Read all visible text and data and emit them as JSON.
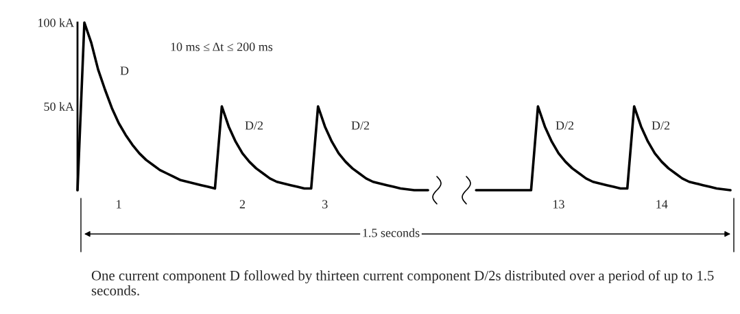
{
  "chart_data": {
    "type": "line",
    "categories": [
      null,
      null,
      null,
      null,
      null,
      null,
      "1",
      null,
      null,
      null,
      null,
      null,
      null,
      null,
      null,
      null,
      null,
      null,
      null,
      null,
      null,
      null,
      null,
      null,
      "2",
      null,
      null,
      null,
      null,
      null,
      null,
      null,
      null,
      null,
      null,
      null,
      "3",
      null,
      null,
      null,
      null,
      null,
      null,
      null,
      null,
      null,
      null,
      null,
      null,
      null,
      null,
      null,
      null,
      null,
      null,
      null,
      null,
      null,
      null,
      null,
      null,
      null,
      null,
      null,
      null,
      null,
      null,
      null,
      null,
      null,
      "13",
      null,
      null,
      null,
      null,
      null,
      null,
      null,
      null,
      null,
      null,
      null,
      null,
      null,
      null,
      "14",
      null,
      null,
      null,
      null,
      null,
      null,
      null,
      null,
      null,
      null
    ],
    "series": [
      {
        "color": "#000000",
        "values": [
          0,
          100,
          88,
          72,
          60,
          49,
          40,
          33,
          27,
          22,
          18,
          15,
          12,
          10,
          8,
          6,
          5,
          4,
          3,
          2,
          1,
          50,
          38,
          29,
          22,
          17,
          13,
          10,
          7,
          5,
          4,
          3,
          2,
          1,
          1,
          50,
          38,
          29,
          22,
          17,
          13,
          10,
          7,
          5,
          4,
          3,
          2,
          1,
          0.5,
          0,
          0,
          0,
          null,
          null,
          null,
          null,
          null,
          null,
          0,
          0,
          0,
          0,
          0,
          0,
          0,
          0,
          0,
          50,
          38,
          29,
          22,
          17,
          13,
          10,
          7,
          5,
          4,
          3,
          2,
          1,
          1,
          50,
          38,
          29,
          22,
          17,
          13,
          10,
          7,
          5,
          4,
          3,
          2,
          1,
          0.5,
          0
        ]
      }
    ],
    "ylim": [
      0,
      100
    ],
    "yticks": [
      {
        "value": 50,
        "label": "50 kA"
      },
      {
        "value": 100,
        "label": "100 kA"
      }
    ],
    "grid": false,
    "legend": false,
    "marker": "none",
    "line_style": "solid",
    "annotations": [
      "10 ms ≤ Δt ≤ 200 ms",
      "D",
      "D/2",
      "D/2",
      "D/2",
      "D/2",
      "1.5 seconds",
      "One current component D followed by thirteen current component D/2s distributed over a period of up to 1.5 seconds."
    ]
  }
}
